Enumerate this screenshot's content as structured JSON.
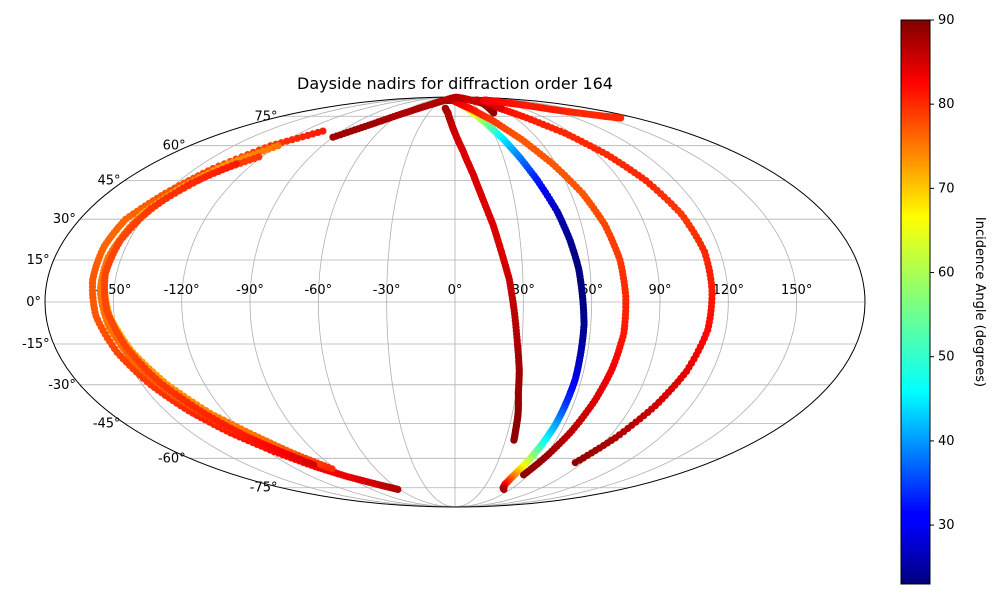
{
  "chart_data": {
    "type": "scatter",
    "projection": "mollweide",
    "title": "Dayside nadirs for diffraction order 164",
    "grid": true,
    "longitude_ticks": [
      "-150°",
      "-120°",
      "-90°",
      "-60°",
      "-30°",
      "0°",
      "30°",
      "60°",
      "90°",
      "120°",
      "150°"
    ],
    "latitude_ticks": [
      "75°",
      "60°",
      "45°",
      "30°",
      "15°",
      "0°",
      "-15°",
      "-30°",
      "-45°",
      "-60°",
      "-75°"
    ],
    "colorbar": {
      "label": "Incidence Angle (degrees)",
      "colormap": "jet",
      "range": [
        23,
        90
      ],
      "ticks": [
        "30",
        "40",
        "50",
        "60",
        "70",
        "80",
        "90"
      ],
      "tick_values": [
        30,
        40,
        50,
        60,
        70,
        80,
        90
      ],
      "position": "right"
    },
    "series": [
      {
        "lon": [
          -13,
          -8,
          -4,
          0,
          5,
          10,
          14,
          18,
          21,
          24,
          26,
          28,
          30,
          31,
          33,
          34,
          35
        ],
        "lat": [
          80,
          77,
          72,
          66,
          58,
          48,
          38,
          28,
          18,
          8,
          -3,
          -15,
          -25,
          -33,
          -41,
          -47,
          -52
        ],
        "inc": [
          88,
          87,
          86,
          85,
          84,
          84,
          84,
          84,
          84,
          85,
          86,
          87,
          88,
          88,
          89,
          89,
          89
        ]
      },
      {
        "lon": [
          -20,
          -10,
          0,
          10,
          20,
          28,
          35,
          40,
          45,
          50,
          53,
          55,
          56,
          57,
          57,
          57,
          56,
          55,
          53,
          51,
          49,
          48,
          48,
          50,
          53
        ],
        "lat": [
          86,
          86,
          86,
          84,
          78,
          71,
          63,
          55,
          45,
          33,
          22,
          12,
          2,
          -8,
          -18,
          -28,
          -38,
          -46,
          -54,
          -61,
          -66,
          -70,
          -73,
          -75,
          -76
        ],
        "inc": [
          88,
          86,
          82,
          76,
          66,
          57,
          47,
          40,
          33,
          27,
          24,
          23,
          23,
          24,
          26,
          30,
          35,
          42,
          50,
          60,
          68,
          75,
          80,
          84,
          87
        ]
      },
      {
        "lon": [
          -10,
          5,
          20,
          35,
          48,
          58,
          66,
          71,
          74,
          75,
          75,
          73,
          70,
          66,
          61,
          56
        ],
        "lat": [
          87,
          84,
          80,
          73,
          63,
          52,
          40,
          28,
          15,
          2,
          -11,
          -24,
          -36,
          -48,
          -59,
          -68
        ],
        "inc": [
          86,
          83,
          81,
          78,
          76,
          76,
          76,
          77,
          78,
          79,
          80,
          82,
          84,
          86,
          88,
          89
        ]
      },
      {
        "lon": [
          40,
          55,
          70,
          85,
          96,
          104,
          110,
          113,
          113,
          112,
          108,
          102,
          94,
          85
        ],
        "lat": [
          86,
          82,
          75,
          66,
          56,
          45,
          32,
          18,
          4,
          -10,
          -25,
          -38,
          -51,
          -62
        ],
        "inc": [
          84,
          82,
          80,
          79,
          79,
          79,
          78,
          79,
          80,
          81,
          83,
          85,
          87,
          89
        ]
      },
      {
        "lon": [
          44,
          46,
          48,
          50,
          52,
          54,
          56,
          58,
          62,
          70,
          80,
          95,
          110,
          125,
          140,
          155,
          165
        ],
        "lat": [
          77,
          80,
          82,
          84,
          86,
          86,
          86,
          82,
          80,
          86,
          86,
          84,
          82,
          79,
          77,
          75,
          74
        ],
        "inc": [
          89,
          89,
          88,
          88,
          87,
          86,
          85,
          86,
          84,
          83,
          82,
          81,
          80,
          80,
          79,
          79,
          79
        ]
      },
      {
        "lon": [
          -90,
          -75,
          -60,
          -45,
          -30,
          -15,
          0,
          15,
          30,
          40
        ],
        "lat": [
          64,
          70,
          76,
          81,
          85,
          88,
          89,
          89,
          88,
          86
        ],
        "inc": [
          88,
          88,
          87,
          87,
          87,
          86,
          86,
          86,
          86,
          85
        ]
      },
      {
        "lon": [
          -105,
          -125,
          -140,
          -150,
          -158,
          -160,
          -160,
          -158,
          -153,
          -146,
          -138,
          -128,
          -116,
          -103,
          -90,
          -75,
          -62
        ],
        "lat": [
          67,
          60,
          50,
          40,
          30,
          20,
          8,
          -5,
          -18,
          -30,
          -40,
          -49,
          -57,
          -64,
          -69,
          -73,
          -76
        ],
        "inc": [
          80,
          78,
          77,
          76,
          75,
          75,
          76,
          76,
          77,
          78,
          79,
          80,
          81,
          82,
          83,
          85,
          87
        ]
      },
      {
        "lon": [
          -120,
          -135,
          -145,
          -152,
          -155,
          -155,
          -152,
          -146,
          -138,
          -128,
          -116,
          -105,
          -93
        ],
        "lat": [
          60,
          52,
          42,
          32,
          20,
          8,
          -5,
          -18,
          -30,
          -41,
          -50,
          -58,
          -65
        ],
        "inc": [
          74,
          72,
          71,
          70,
          69,
          69,
          70,
          71,
          72,
          73,
          74,
          76,
          79
        ]
      },
      {
        "lon": [
          -122,
          -137,
          -147,
          -153,
          -156,
          -156,
          -153,
          -147,
          -139,
          -129,
          -118,
          -107
        ],
        "lat": [
          55,
          48,
          38,
          28,
          16,
          4,
          -9,
          -22,
          -34,
          -44,
          -53,
          -60
        ],
        "inc": [
          78,
          77,
          76,
          75,
          74,
          74,
          74,
          75,
          76,
          77,
          78,
          80
        ]
      },
      {
        "lon": [
          -130,
          -142,
          -150,
          -154,
          -155,
          -153,
          -148,
          -141,
          -132,
          -122,
          -112,
          -102
        ],
        "lat": [
          52,
          44,
          34,
          22,
          10,
          -3,
          -16,
          -29,
          -40,
          -50,
          -57,
          -63
        ],
        "inc": [
          80,
          79,
          78,
          77,
          77,
          77,
          77,
          78,
          79,
          80,
          82,
          84
        ]
      }
    ]
  }
}
